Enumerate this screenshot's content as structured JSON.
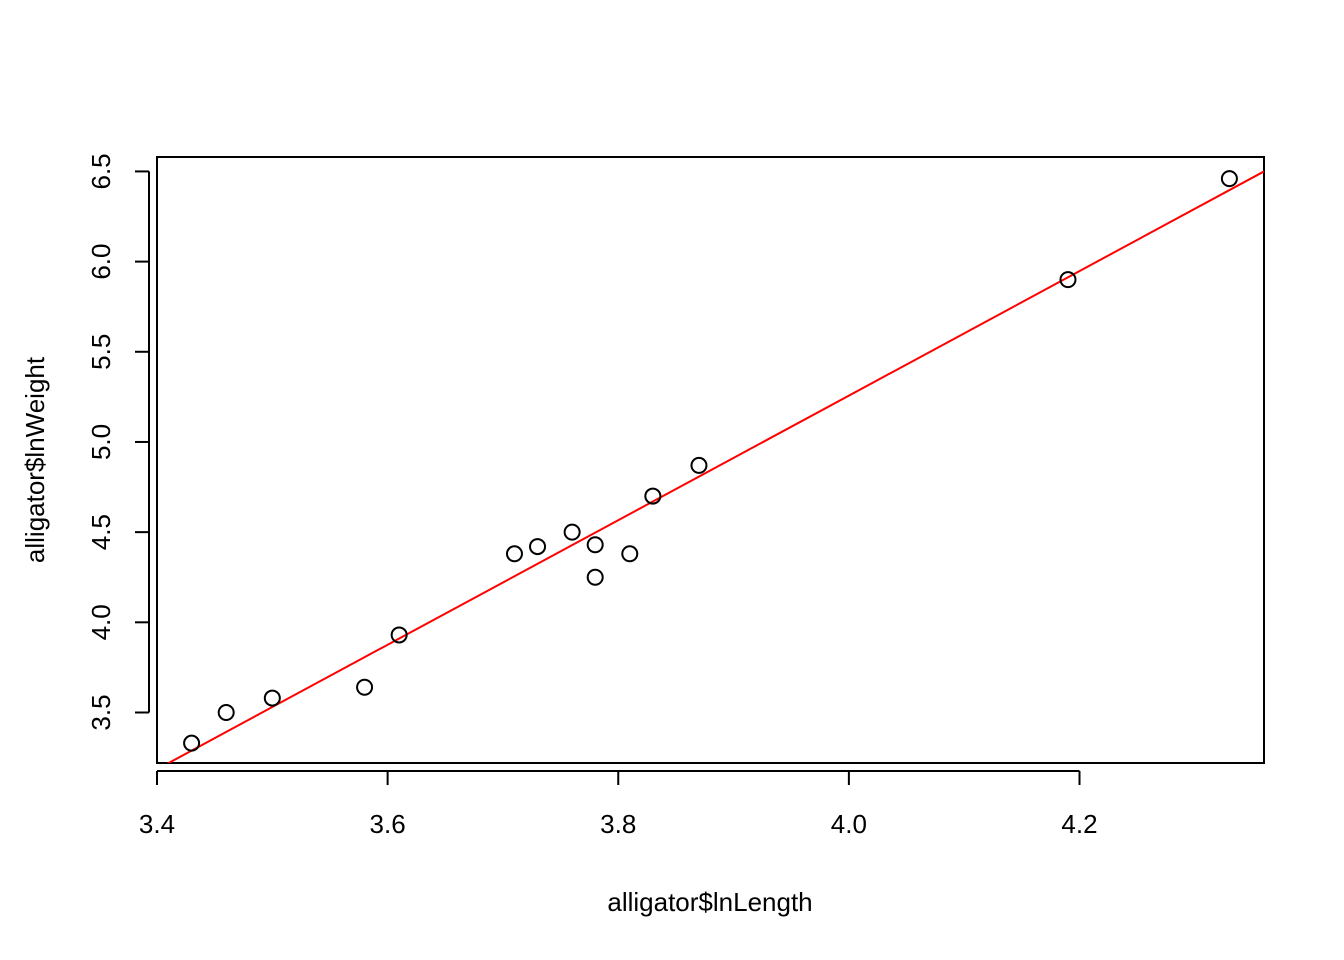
{
  "chart_data": {
    "type": "scatter",
    "title": "",
    "xlabel": "alligator$lnLength",
    "ylabel": "alligator$lnWeight",
    "xlim": [
      3.4,
      4.36
    ],
    "ylim": [
      3.22,
      6.58
    ],
    "x_ticks": [
      3.4,
      3.6,
      3.8,
      4.0,
      4.2
    ],
    "x_tick_labels": [
      "3.4",
      "3.6",
      "3.8",
      "4.0",
      "4.2"
    ],
    "y_ticks": [
      3.5,
      4.0,
      4.5,
      5.0,
      5.5,
      6.0,
      6.5
    ],
    "y_tick_labels": [
      "3.5",
      "4.0",
      "4.5",
      "5.0",
      "5.5",
      "6.0",
      "6.5"
    ],
    "grid": false,
    "series": [
      {
        "kind": "points",
        "marker": "open-circle",
        "color": "#000000",
        "x": [
          3.43,
          3.46,
          3.5,
          3.58,
          3.61,
          3.71,
          3.73,
          3.76,
          3.78,
          3.78,
          3.81,
          3.83,
          3.87,
          4.19,
          4.33
        ],
        "y": [
          3.33,
          3.5,
          3.58,
          3.64,
          3.93,
          4.38,
          4.42,
          4.5,
          4.43,
          4.25,
          4.38,
          4.7,
          4.87,
          5.9,
          6.46
        ]
      },
      {
        "kind": "fitted-line",
        "color": "#ff0000",
        "x": [
          3.4,
          4.36
        ],
        "y": [
          3.185,
          6.5
        ]
      }
    ]
  }
}
